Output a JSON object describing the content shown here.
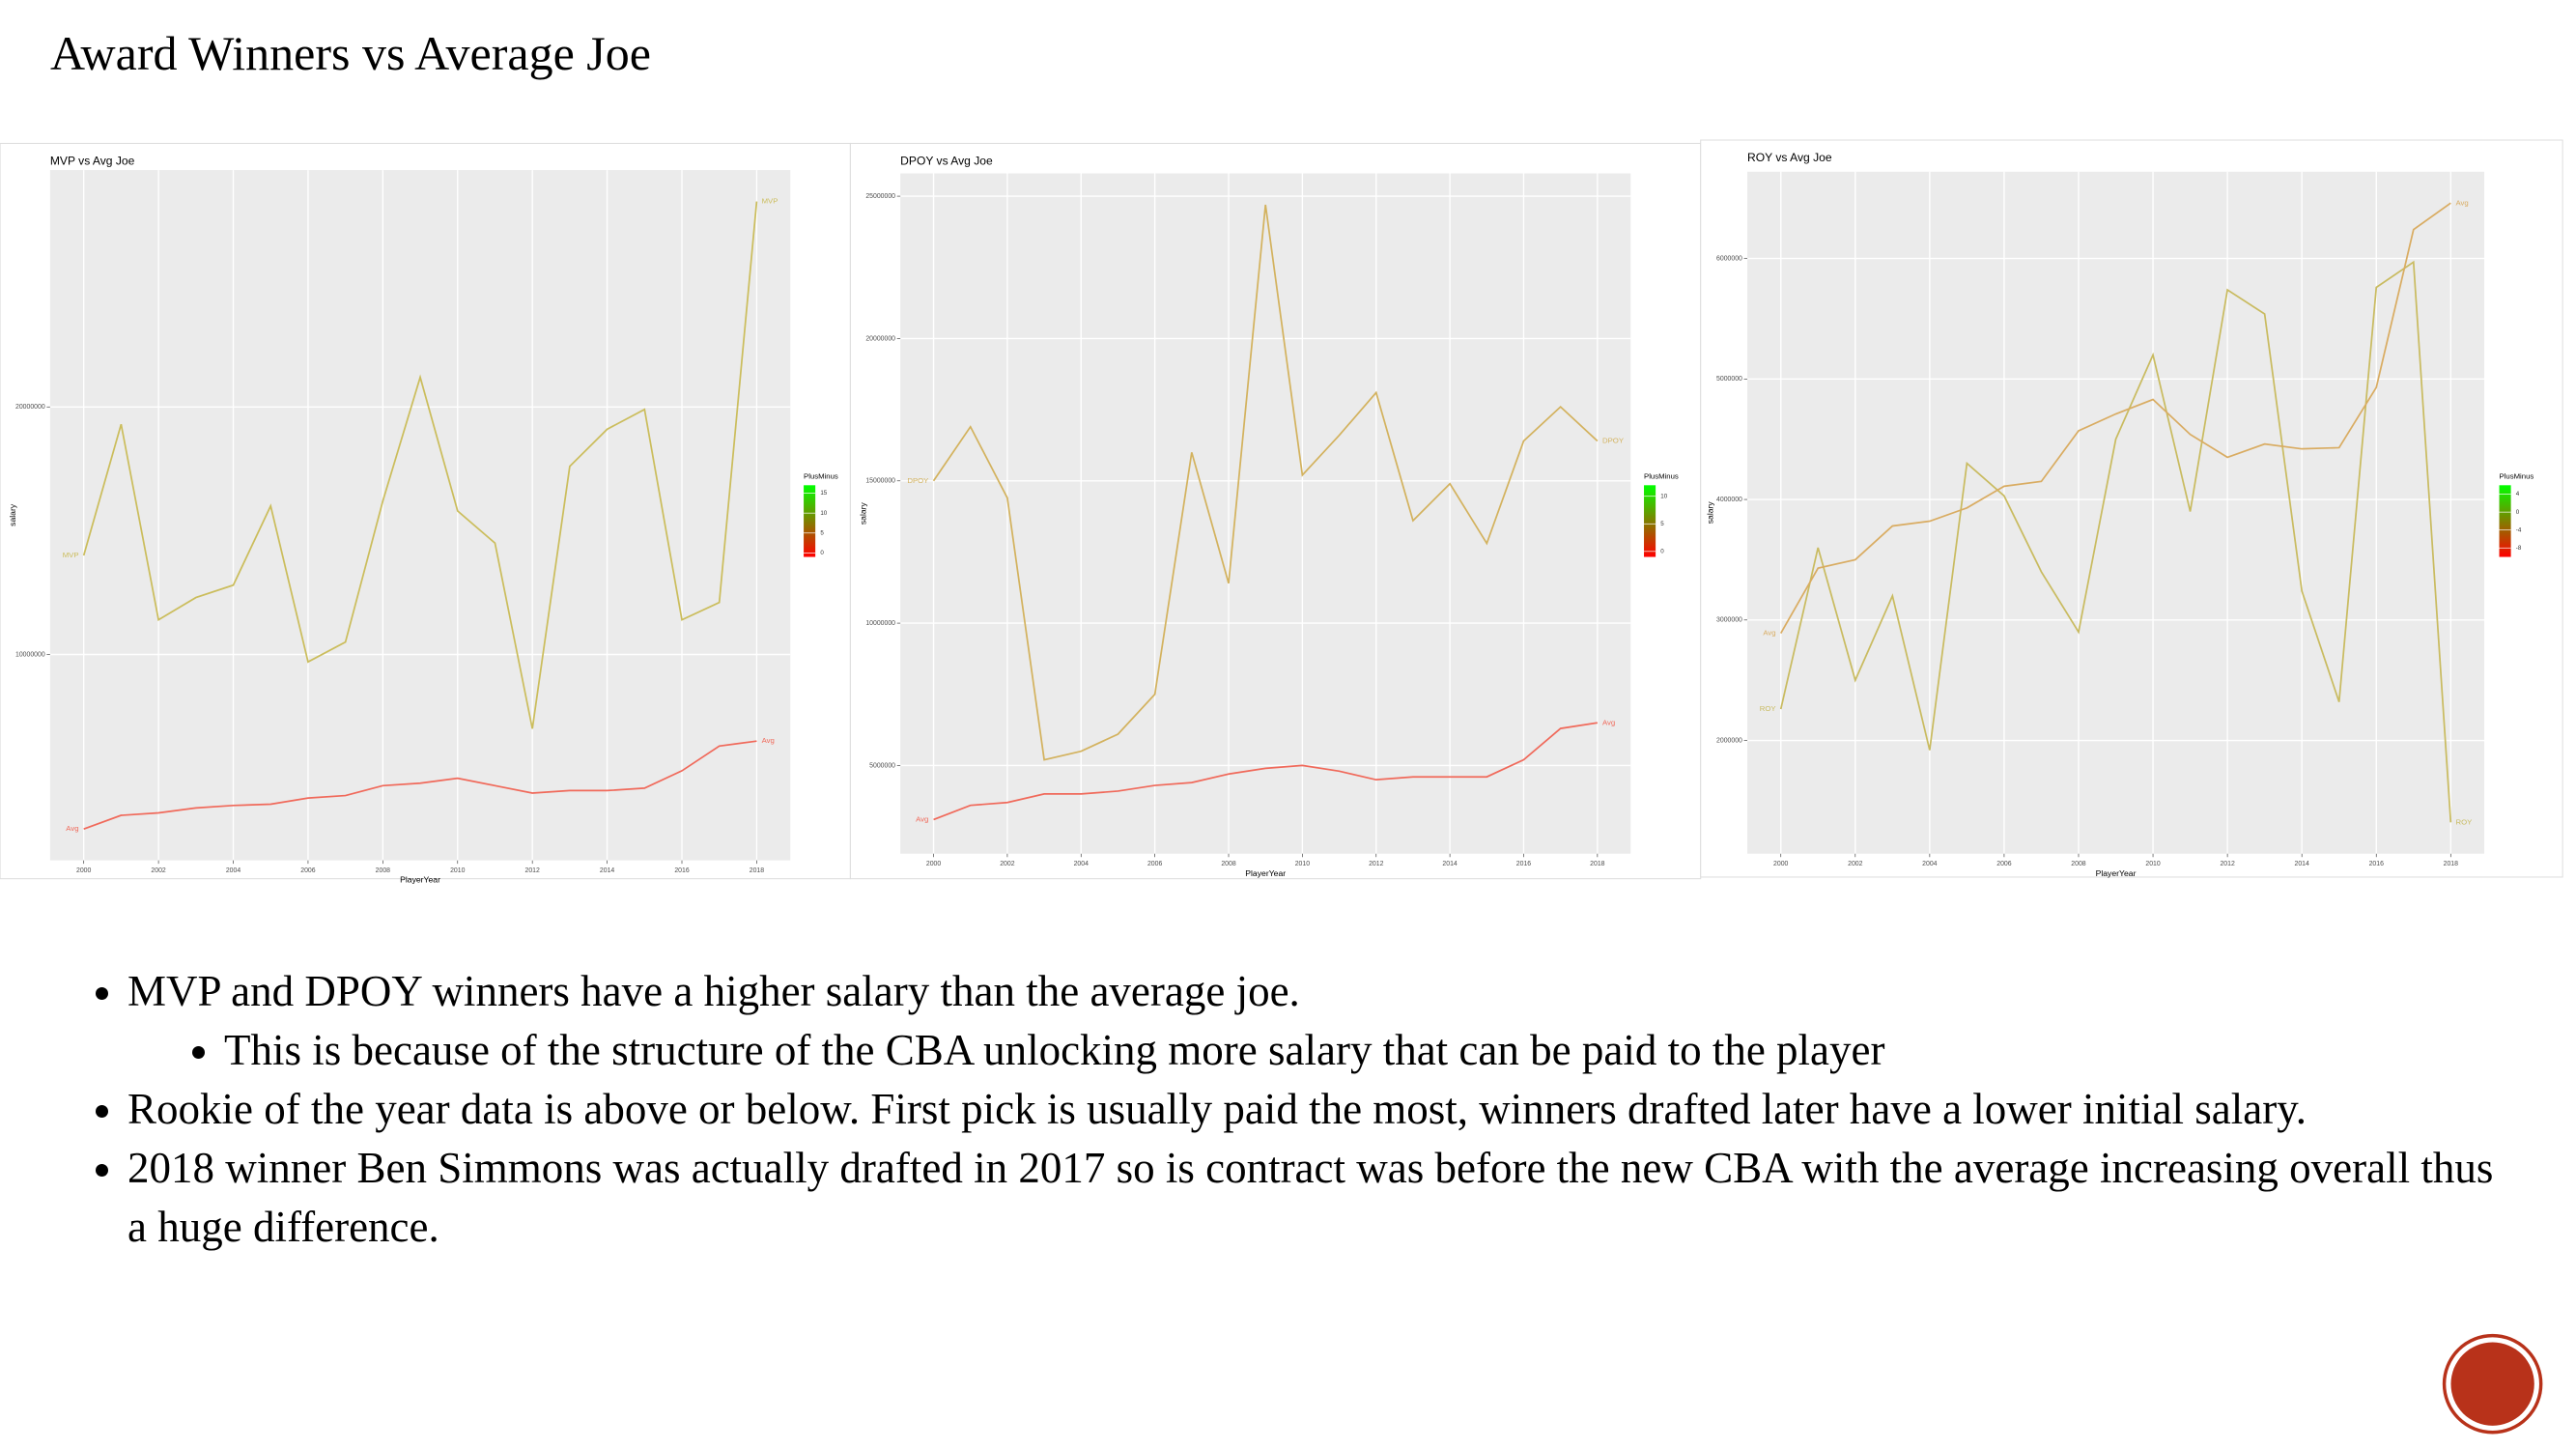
{
  "title": "Award Winners vs Average Joe",
  "chart_data": [
    {
      "type": "line",
      "title": "MVP vs Avg Joe",
      "x_label": "PlayerYear",
      "y_label": "salary",
      "x": [
        2000,
        2001,
        2002,
        2003,
        2004,
        2005,
        2006,
        2007,
        2008,
        2009,
        2010,
        2011,
        2012,
        2013,
        2014,
        2015,
        2016,
        2017,
        2018
      ],
      "xlim": [
        1999.1,
        2018.9
      ],
      "xticks": [
        2000,
        2002,
        2004,
        2006,
        2008,
        2010,
        2012,
        2014,
        2016,
        2018
      ],
      "ylim": [
        1680000,
        29570000
      ],
      "yticks": [
        10000000,
        20000000
      ],
      "grid": true,
      "series": [
        {
          "name": "MVP",
          "color": "#cbbd5c",
          "values": [
            14000000,
            19300000,
            11400000,
            12300000,
            12800000,
            16000000,
            9700000,
            10500000,
            16200000,
            21200000,
            15800000,
            14500000,
            7000000,
            17600000,
            19100000,
            19900000,
            11400000,
            12100000,
            28300000
          ]
        },
        {
          "name": "Avg",
          "color": "#f0695a",
          "values": [
            2950000,
            3500000,
            3600000,
            3800000,
            3900000,
            3950000,
            4200000,
            4300000,
            4700000,
            4800000,
            5000000,
            4700000,
            4400000,
            4500000,
            4500000,
            4600000,
            5300000,
            6300000,
            6500000
          ]
        }
      ],
      "colorbar": {
        "title": "PlusMinus",
        "lim": [
          -1,
          17
        ],
        "ticks": [
          0,
          5,
          10,
          15
        ],
        "colors": [
          "#ff0000",
          "#00ff00"
        ]
      }
    },
    {
      "type": "line",
      "title": "DPOY vs Avg Joe",
      "x_label": "PlayerYear",
      "y_label": "salary",
      "x": [
        2000,
        2001,
        2002,
        2003,
        2004,
        2005,
        2006,
        2007,
        2008,
        2009,
        2010,
        2011,
        2012,
        2013,
        2014,
        2015,
        2016,
        2017,
        2018
      ],
      "xlim": [
        1999.1,
        2018.9
      ],
      "xticks": [
        2000,
        2002,
        2004,
        2006,
        2008,
        2010,
        2012,
        2014,
        2016,
        2018
      ],
      "ylim": [
        1900000,
        25800000
      ],
      "yticks": [
        5000000,
        10000000,
        15000000,
        20000000,
        25000000
      ],
      "grid": true,
      "series": [
        {
          "name": "DPOY",
          "color": "#d3b25e",
          "values": [
            15000000,
            16900000,
            14400000,
            5200000,
            5500000,
            6100000,
            7500000,
            16000000,
            11400000,
            24700000,
            15200000,
            16600000,
            18100000,
            13600000,
            14900000,
            12800000,
            16400000,
            17600000,
            16400000
          ]
        },
        {
          "name": "Avg",
          "color": "#f0695a",
          "values": [
            3100000,
            3600000,
            3700000,
            4000000,
            4000000,
            4100000,
            4300000,
            4400000,
            4700000,
            4900000,
            5000000,
            4800000,
            4500000,
            4600000,
            4600000,
            4600000,
            5200000,
            6300000,
            6500000
          ]
        }
      ],
      "colorbar": {
        "title": "PlusMinus",
        "lim": [
          -1,
          12
        ],
        "ticks": [
          0,
          5,
          10
        ],
        "colors": [
          "#ff0000",
          "#00ff00"
        ]
      }
    },
    {
      "type": "line",
      "title": "ROY vs Avg Joe",
      "x_label": "PlayerYear",
      "y_label": "salary",
      "x": [
        2000,
        2001,
        2002,
        2003,
        2004,
        2005,
        2006,
        2007,
        2008,
        2009,
        2010,
        2011,
        2012,
        2013,
        2014,
        2015,
        2016,
        2017,
        2018
      ],
      "xlim": [
        1999.1,
        2018.9
      ],
      "xticks": [
        2000,
        2002,
        2004,
        2006,
        2008,
        2010,
        2012,
        2014,
        2016,
        2018
      ],
      "ylim": [
        1060000,
        6720000
      ],
      "yticks": [
        2000000,
        3000000,
        4000000,
        5000000,
        6000000
      ],
      "grid": true,
      "series": [
        {
          "name": "ROY",
          "color": "#c9bb60",
          "values": [
            2260000,
            3600000,
            2500000,
            3200000,
            1920000,
            4300000,
            4030000,
            3400000,
            2900000,
            4500000,
            5200000,
            3900000,
            5740000,
            5540000,
            3240000,
            2320000,
            5760000,
            5970000,
            1320000
          ]
        },
        {
          "name": "Avg",
          "color": "#d9ac62",
          "values": [
            2890000,
            3430000,
            3500000,
            3780000,
            3820000,
            3930000,
            4110000,
            4150000,
            4570000,
            4710000,
            4830000,
            4540000,
            4350000,
            4460000,
            4420000,
            4430000,
            4930000,
            6240000,
            6460000
          ]
        }
      ],
      "colorbar": {
        "title": "PlusMinus",
        "lim": [
          -10,
          6
        ],
        "ticks": [
          -8,
          -4,
          0,
          4
        ],
        "colors": [
          "#ff0000",
          "#00ff00"
        ]
      }
    }
  ],
  "bullets": [
    {
      "text": "MVP and DPOY winners have a higher salary than the average joe.",
      "sub": [
        "This is because of the structure of the CBA unlocking more salary that can be paid to the player"
      ]
    },
    {
      "text": "Rookie of the year data is above or below.  First pick is usually paid the most, winners drafted later have a lower initial salary.",
      "sub": []
    },
    {
      "text": "2018 winner Ben Simmons was actually drafted in 2017 so is contract was before the new CBA with the average increasing overall thus a huge difference.",
      "sub": []
    }
  ]
}
